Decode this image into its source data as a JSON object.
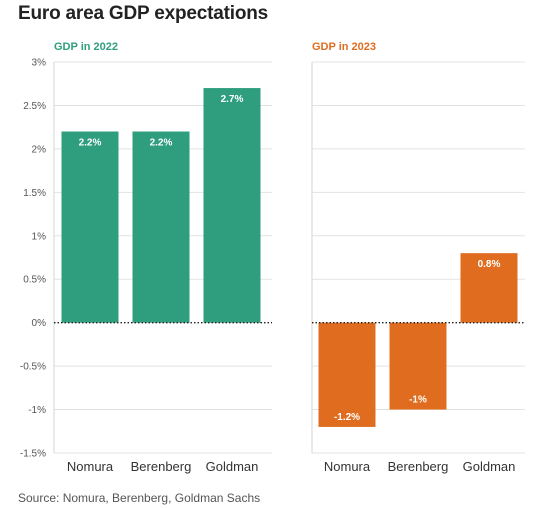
{
  "title": "Euro area GDP expectations",
  "source": "Source: Nomura, Berenberg, Goldman Sachs",
  "colors": {
    "gdp_2022": "#2e9e7e",
    "gdp_2023": "#e06d1f"
  },
  "chart_data": [
    {
      "type": "bar",
      "title": "GDP in 2022",
      "categories": [
        "Nomura",
        "Berenberg",
        "Goldman"
      ],
      "values": [
        2.2,
        2.2,
        2.7
      ],
      "data_labels": [
        "2.2%",
        "2.2%",
        "2.7%"
      ],
      "ylim": [
        -1.5,
        3
      ],
      "yticks": [
        3,
        2.5,
        2,
        1.5,
        1,
        0.5,
        0,
        -0.5,
        -1,
        -1.5
      ],
      "ytick_labels": [
        "3%",
        "2.5%",
        "2%",
        "1.5%",
        "1%",
        "0.5%",
        "0%",
        "-0.5%",
        "-1%",
        "-1.5%"
      ],
      "grid": true,
      "color": "#2e9e7e"
    },
    {
      "type": "bar",
      "title": "GDP in 2023",
      "categories": [
        "Nomura",
        "Berenberg",
        "Goldman"
      ],
      "values": [
        -1.2,
        -1,
        0.8
      ],
      "data_labels": [
        "-1.2%",
        "-1%",
        "0.8%"
      ],
      "ylim": [
        -1.5,
        3
      ],
      "yticks": [
        3,
        2.5,
        2,
        1.5,
        1,
        0.5,
        0,
        -0.5,
        -1,
        -1.5
      ],
      "grid": true,
      "color": "#e06d1f"
    }
  ]
}
